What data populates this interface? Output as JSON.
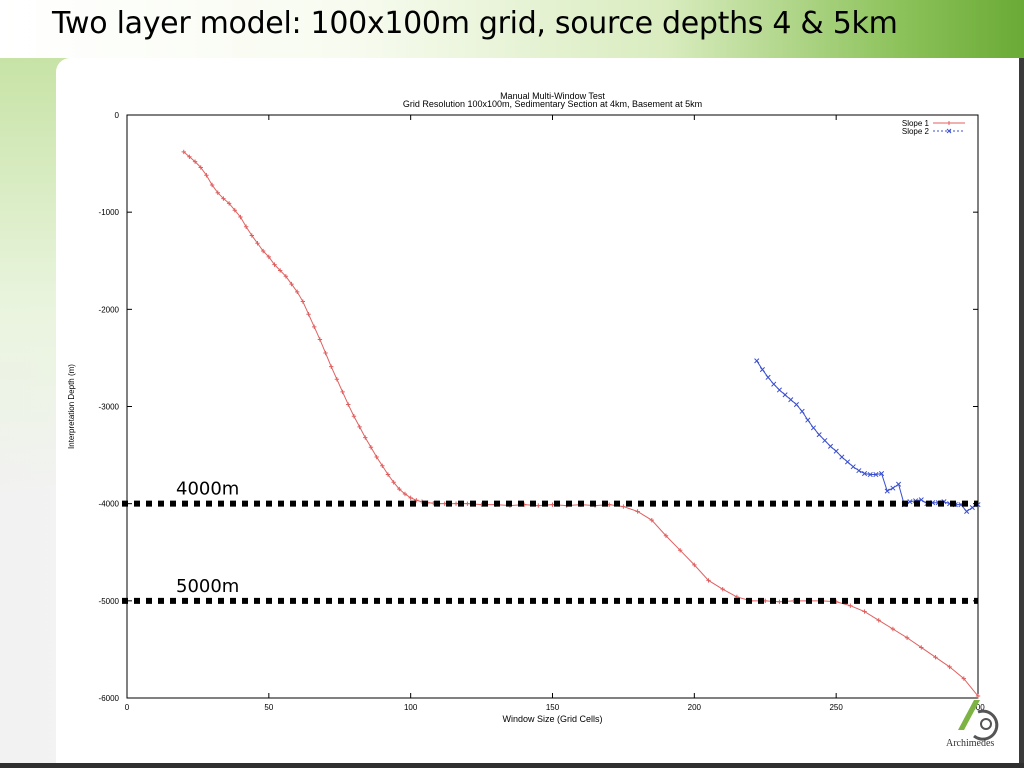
{
  "slide": {
    "title": "Two layer model: 100x100m grid, source depths 4 & 5km",
    "logo_text": "Archimedes"
  },
  "colors": {
    "series1": "#e06060",
    "series2": "#3a4fd0",
    "reference_line": "#000000"
  },
  "chart_data": {
    "type": "line",
    "title": "Manual Multi-Window Test",
    "subtitle": "Grid Resolution 100x100m, Sedimentary Section at 4km, Basement at 5km",
    "xlabel": "Window Size (Grid Cells)",
    "ylabel": "Interpretation Depth (m)",
    "xlim": [
      0,
      300
    ],
    "ylim": [
      -6000,
      0
    ],
    "xticks": [
      0,
      50,
      100,
      150,
      200,
      250,
      300
    ],
    "yticks": [
      0,
      -1000,
      -2000,
      -3000,
      -4000,
      -5000,
      -6000
    ],
    "grid": false,
    "legend_position": "top-right",
    "series": [
      {
        "name": "Slope 1",
        "marker": "+",
        "x": [
          20,
          22,
          24,
          26,
          28,
          30,
          32,
          34,
          36,
          38,
          40,
          42,
          44,
          46,
          48,
          50,
          52,
          54,
          56,
          58,
          60,
          62,
          64,
          66,
          68,
          70,
          72,
          74,
          76,
          78,
          80,
          82,
          84,
          86,
          88,
          90,
          92,
          94,
          96,
          98,
          100,
          102,
          104,
          106,
          108,
          110,
          112,
          114,
          116,
          118,
          120,
          125,
          130,
          135,
          140,
          145,
          150,
          155,
          160,
          165,
          170,
          175,
          180,
          185,
          190,
          195,
          200,
          205,
          210,
          215,
          220,
          225,
          230,
          235,
          240,
          245,
          250,
          255,
          260,
          265,
          270,
          275,
          280,
          285,
          290,
          295,
          300
        ],
        "values": [
          -380,
          -430,
          -480,
          -540,
          -620,
          -720,
          -800,
          -860,
          -910,
          -980,
          -1050,
          -1150,
          -1240,
          -1320,
          -1400,
          -1460,
          -1540,
          -1600,
          -1660,
          -1740,
          -1820,
          -1920,
          -2050,
          -2180,
          -2310,
          -2450,
          -2590,
          -2720,
          -2850,
          -2980,
          -3100,
          -3210,
          -3320,
          -3420,
          -3520,
          -3610,
          -3700,
          -3780,
          -3850,
          -3900,
          -3940,
          -3965,
          -3980,
          -3990,
          -3995,
          -4000,
          -4000,
          -4000,
          -4000,
          -4000,
          -4000,
          -4010,
          -4010,
          -4020,
          -4010,
          -4020,
          -4010,
          -4020,
          -4010,
          -4020,
          -4010,
          -4030,
          -4080,
          -4170,
          -4330,
          -4480,
          -4630,
          -4790,
          -4880,
          -4960,
          -5000,
          -5000,
          -5010,
          -5000,
          -5000,
          -5000,
          -5010,
          -5050,
          -5110,
          -5200,
          -5290,
          -5380,
          -5480,
          -5580,
          -5680,
          -5800,
          -5980
        ]
      },
      {
        "name": "Slope 2",
        "marker": "x",
        "x": [
          222,
          224,
          226,
          228,
          230,
          232,
          234,
          236,
          238,
          240,
          242,
          244,
          246,
          248,
          250,
          252,
          254,
          256,
          258,
          260,
          262,
          264,
          266,
          268,
          270,
          272,
          274,
          276,
          278,
          280,
          282,
          284,
          286,
          288,
          290,
          292,
          294,
          296,
          298,
          300
        ],
        "values": [
          -2530,
          -2620,
          -2700,
          -2770,
          -2830,
          -2880,
          -2930,
          -2980,
          -3050,
          -3140,
          -3220,
          -3290,
          -3350,
          -3410,
          -3460,
          -3520,
          -3570,
          -3620,
          -3660,
          -3690,
          -3700,
          -3700,
          -3690,
          -3870,
          -3840,
          -3800,
          -4010,
          -3980,
          -3970,
          -3960,
          -4000,
          -3990,
          -3990,
          -3980,
          -4000,
          -4010,
          -4010,
          -4080,
          -4040,
          -4010
        ]
      }
    ],
    "reference_lines": [
      {
        "label": "4000m",
        "y": -4000
      },
      {
        "label": "5000m",
        "y": -5000
      }
    ]
  }
}
